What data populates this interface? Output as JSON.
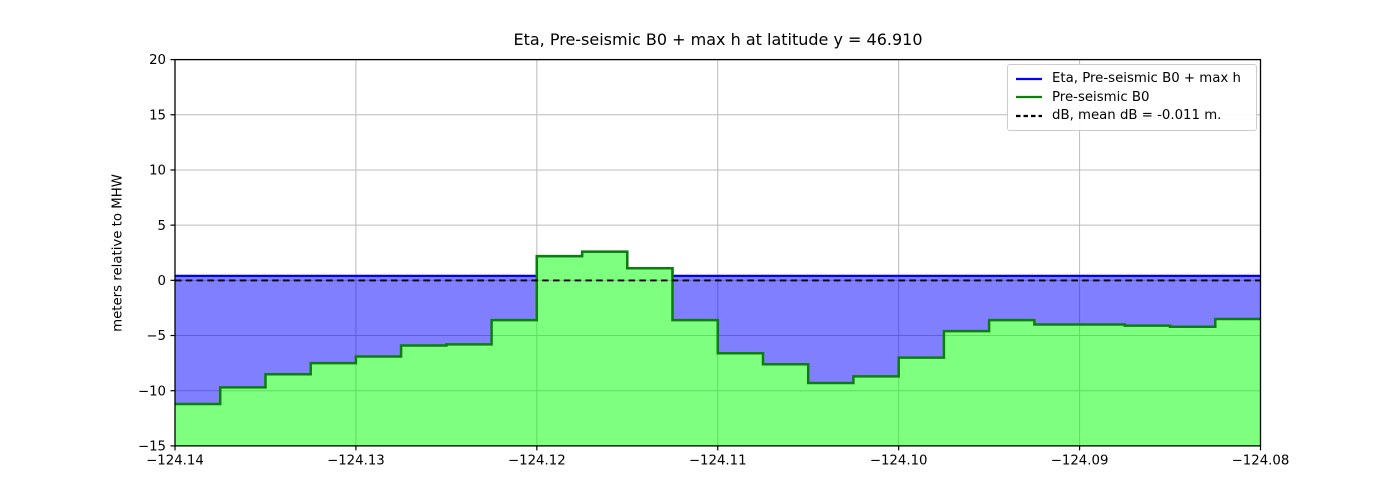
{
  "title": "Eta, Pre-seismic B0 + max h at latitude y = 46.910",
  "y_axis_label": "meters relative to MHW",
  "legend": {
    "items": [
      {
        "label": "Eta, Pre-seismic B0 + max h",
        "color": "#0000ff",
        "line_style": "solid"
      },
      {
        "label": "Pre-seismic B0",
        "color": "#0d7d0d",
        "line_style": "solid"
      },
      {
        "label": "dB, mean dB = -0.011 m.",
        "color": "#000000",
        "line_style": "dashed"
      }
    ]
  },
  "colors": {
    "eta_line": "#0000ff",
    "b0_line": "#0d7d0d",
    "db_line": "#000000",
    "water_fill": "rgba(0,0,255,0.5)",
    "ground_fill": "rgba(0,255,0,0.5)",
    "gridline": "#bcbcbc",
    "spine": "#000000"
  },
  "chart_data": {
    "type": "line",
    "title": "Eta, Pre-seismic B0 + max h at latitude y = 46.910",
    "xlabel": "",
    "ylabel": "meters relative to MHW",
    "xlim": [
      -124.14,
      -124.08
    ],
    "ylim": [
      -15,
      20
    ],
    "grid": true,
    "legend_position": "upper right",
    "xticks": [
      -124.14,
      -124.13,
      -124.12,
      -124.11,
      -124.1,
      -124.09,
      -124.08
    ],
    "xtick_labels": [
      "−124.14",
      "−124.13",
      "−124.12",
      "−124.11",
      "−124.10",
      "−124.09",
      "−124.08"
    ],
    "yticks": [
      20,
      15,
      10,
      5,
      0,
      -5,
      -10,
      -15
    ],
    "ytick_labels": [
      "20",
      "15",
      "10",
      "5",
      "0",
      "−5",
      "−10",
      "−15"
    ],
    "series": [
      {
        "name": "Eta, Pre-seismic B0 + max h",
        "type": "step",
        "color": "#0000ff",
        "description": "water surface: flat offshore level, equals B0 where B0 is above it",
        "offshore_level": 0.4
      },
      {
        "name": "Pre-seismic B0",
        "type": "step",
        "color": "#0d7d0d",
        "x_edges": [
          -124.14,
          -124.1375,
          -124.135,
          -124.1325,
          -124.13,
          -124.1275,
          -124.125,
          -124.1225,
          -124.12,
          -124.1175,
          -124.115,
          -124.1125,
          -124.11,
          -124.1075,
          -124.105,
          -124.1025,
          -124.1,
          -124.0975,
          -124.095,
          -124.0925,
          -124.09,
          -124.0875,
          -124.085,
          -124.0825,
          -124.08
        ],
        "values": [
          -11.2,
          -9.7,
          -8.5,
          -7.5,
          -6.9,
          -5.9,
          -5.8,
          -3.6,
          2.2,
          2.6,
          1.1,
          -3.6,
          -6.6,
          -7.6,
          -9.3,
          -8.7,
          -7.0,
          -4.6,
          -3.6,
          -4.0,
          -4.0,
          -4.1,
          -4.2,
          -3.5
        ]
      },
      {
        "name": "dB, mean dB = -0.011 m.",
        "type": "hline",
        "color": "#000000",
        "style": "dashed",
        "y": -0.011
      }
    ]
  }
}
